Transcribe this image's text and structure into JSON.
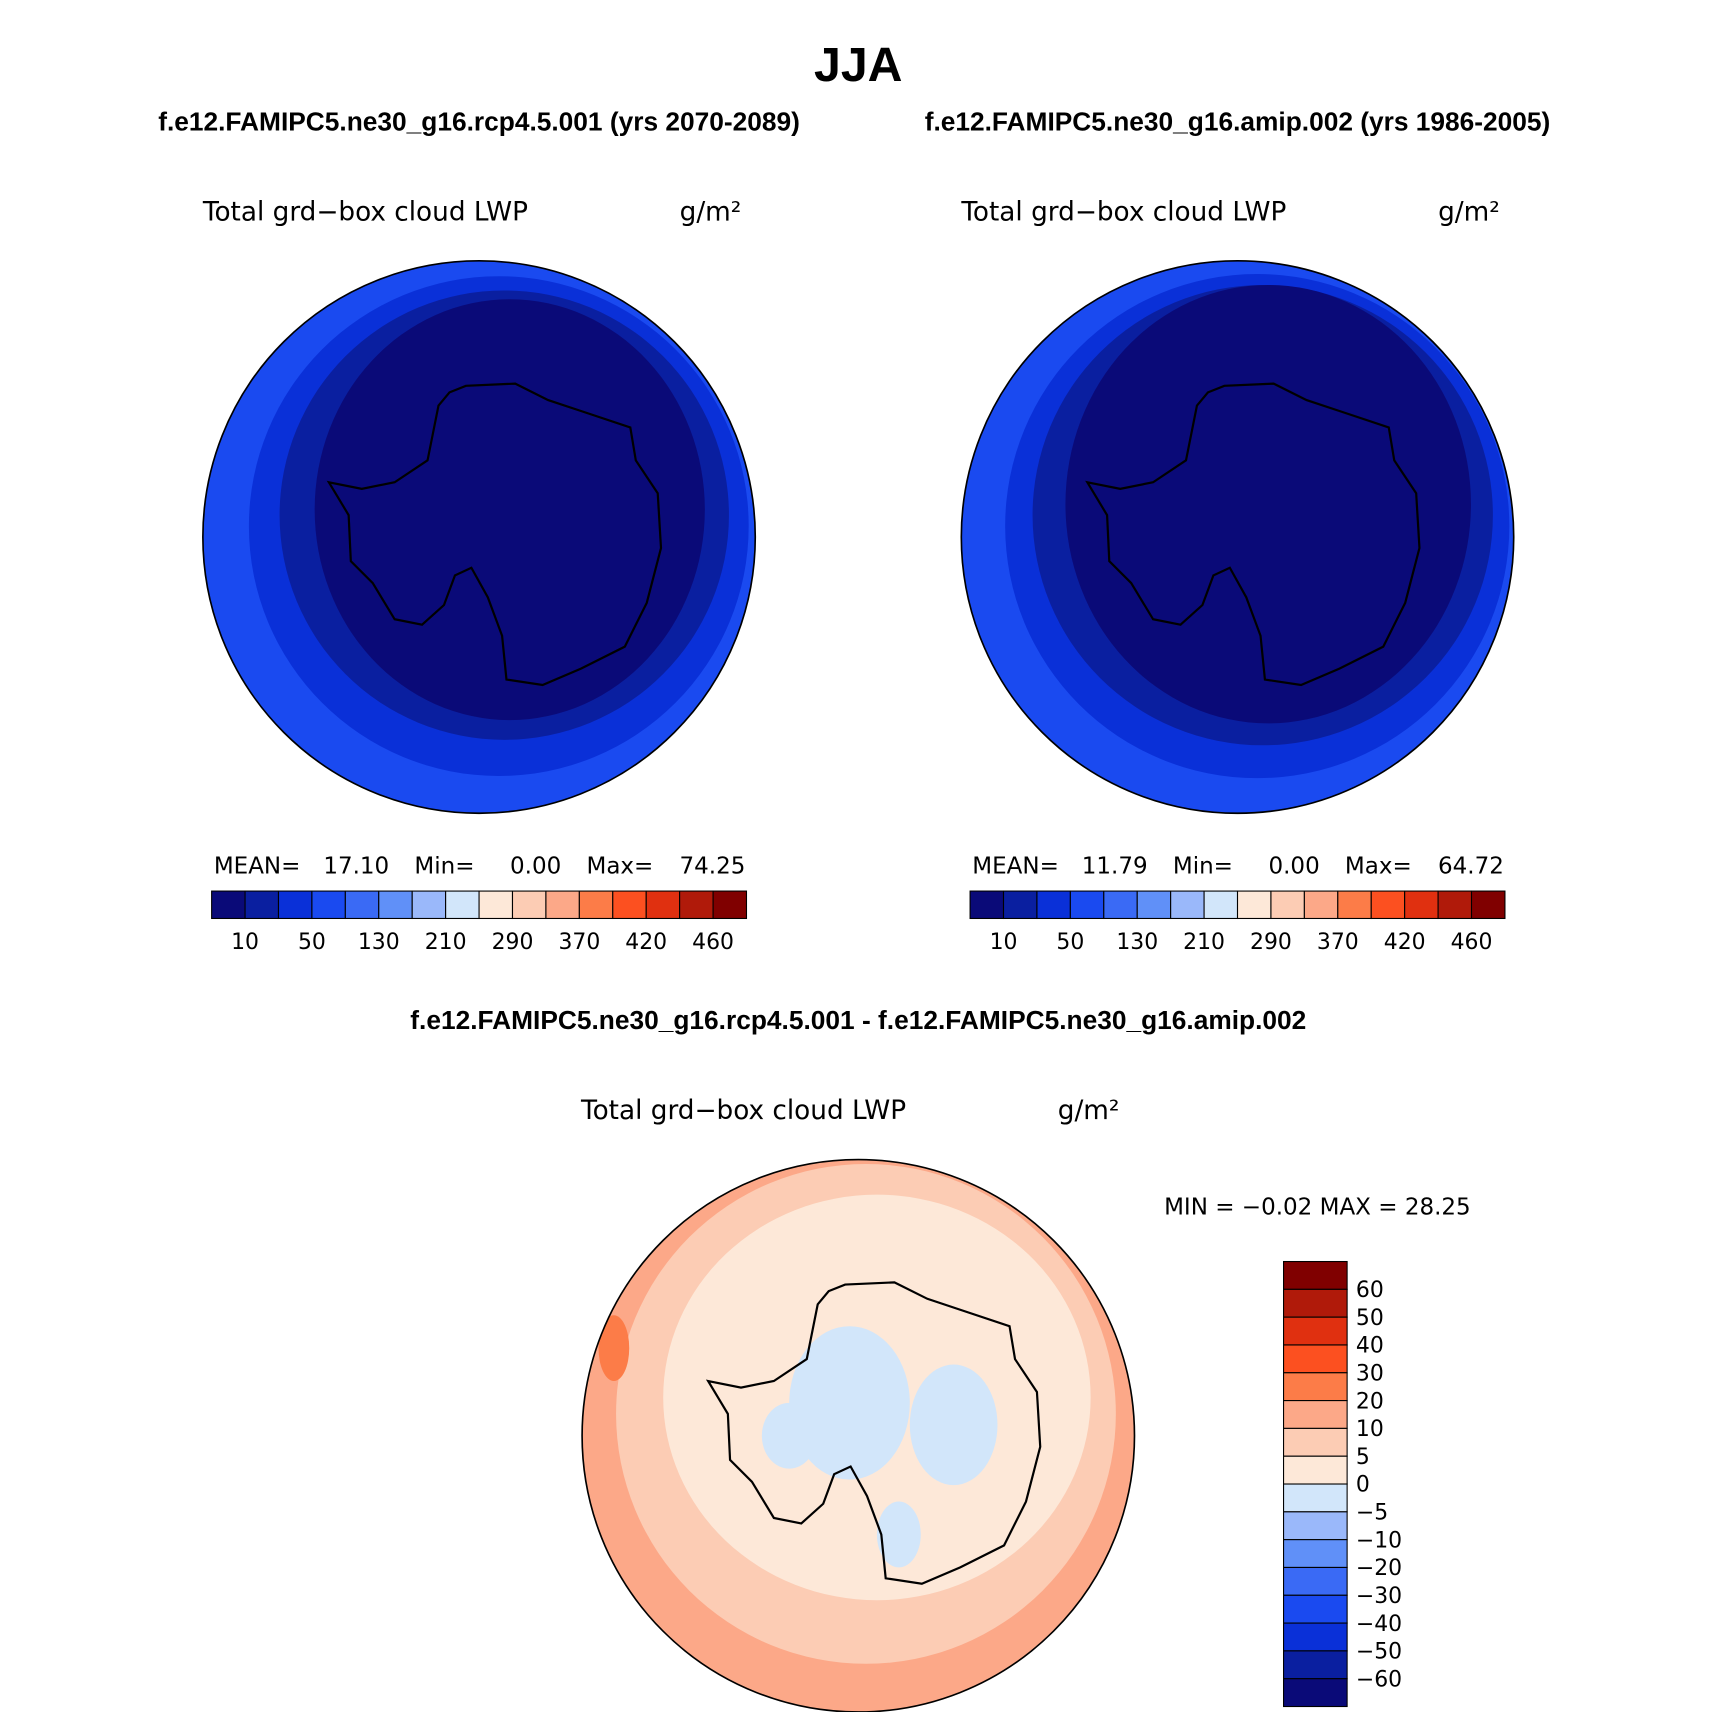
{
  "title": "JJA",
  "panels": [
    {
      "case": "f.e12.FAMIPC5.ne30_g16.rcp4.5.001 (yrs 2070-2089)",
      "variable": "Total grd−box cloud LWP",
      "units": "g/m²",
      "stats": [
        {
          "label": "MEAN=",
          "value": "17.10"
        },
        {
          "label": "Min=",
          "value": "0.00"
        },
        {
          "label": "Max=",
          "value": "74.25"
        }
      ],
      "colorbar": {
        "labels": [
          10,
          50,
          130,
          210,
          290,
          370,
          420,
          460
        ]
      }
    },
    {
      "case": "f.e12.FAMIPC5.ne30_g16.amip.002 (yrs 1986-2005)",
      "variable": "Total grd−box cloud LWP",
      "units": "g/m²",
      "stats": [
        {
          "label": "MEAN=",
          "value": "11.79"
        },
        {
          "label": "Min=",
          "value": "0.00"
        },
        {
          "label": "Max=",
          "value": "64.72"
        }
      ],
      "colorbar": {
        "labels": [
          10,
          50,
          130,
          210,
          290,
          370,
          420,
          460
        ]
      }
    }
  ],
  "difference": {
    "case": "f.e12.FAMIPC5.ne30_g16.rcp4.5.001 - f.e12.FAMIPC5.ne30_g16.amip.002",
    "variable": "Total grd−box cloud LWP",
    "units": "g/m²",
    "range": "MIN =  −0.02 MAX =  28.25",
    "colorbar": {
      "labels": [
        60,
        50,
        40,
        30,
        20,
        10,
        5,
        0,
        "−5",
        "−10",
        "−20",
        "−30",
        "−40",
        "−50",
        "−60"
      ]
    }
  },
  "colors": [
    "#0a0a78",
    "#0a1fa0",
    "#0a30d8",
    "#1a4af0",
    "#3a6af5",
    "#6090f8",
    "#9ab8fa",
    "#d2e6fa",
    "#fde8d8",
    "#fcccb4",
    "#fca888",
    "#fc7c48",
    "#fc5020",
    "#e03010",
    "#b01a0a",
    "#800000"
  ]
}
